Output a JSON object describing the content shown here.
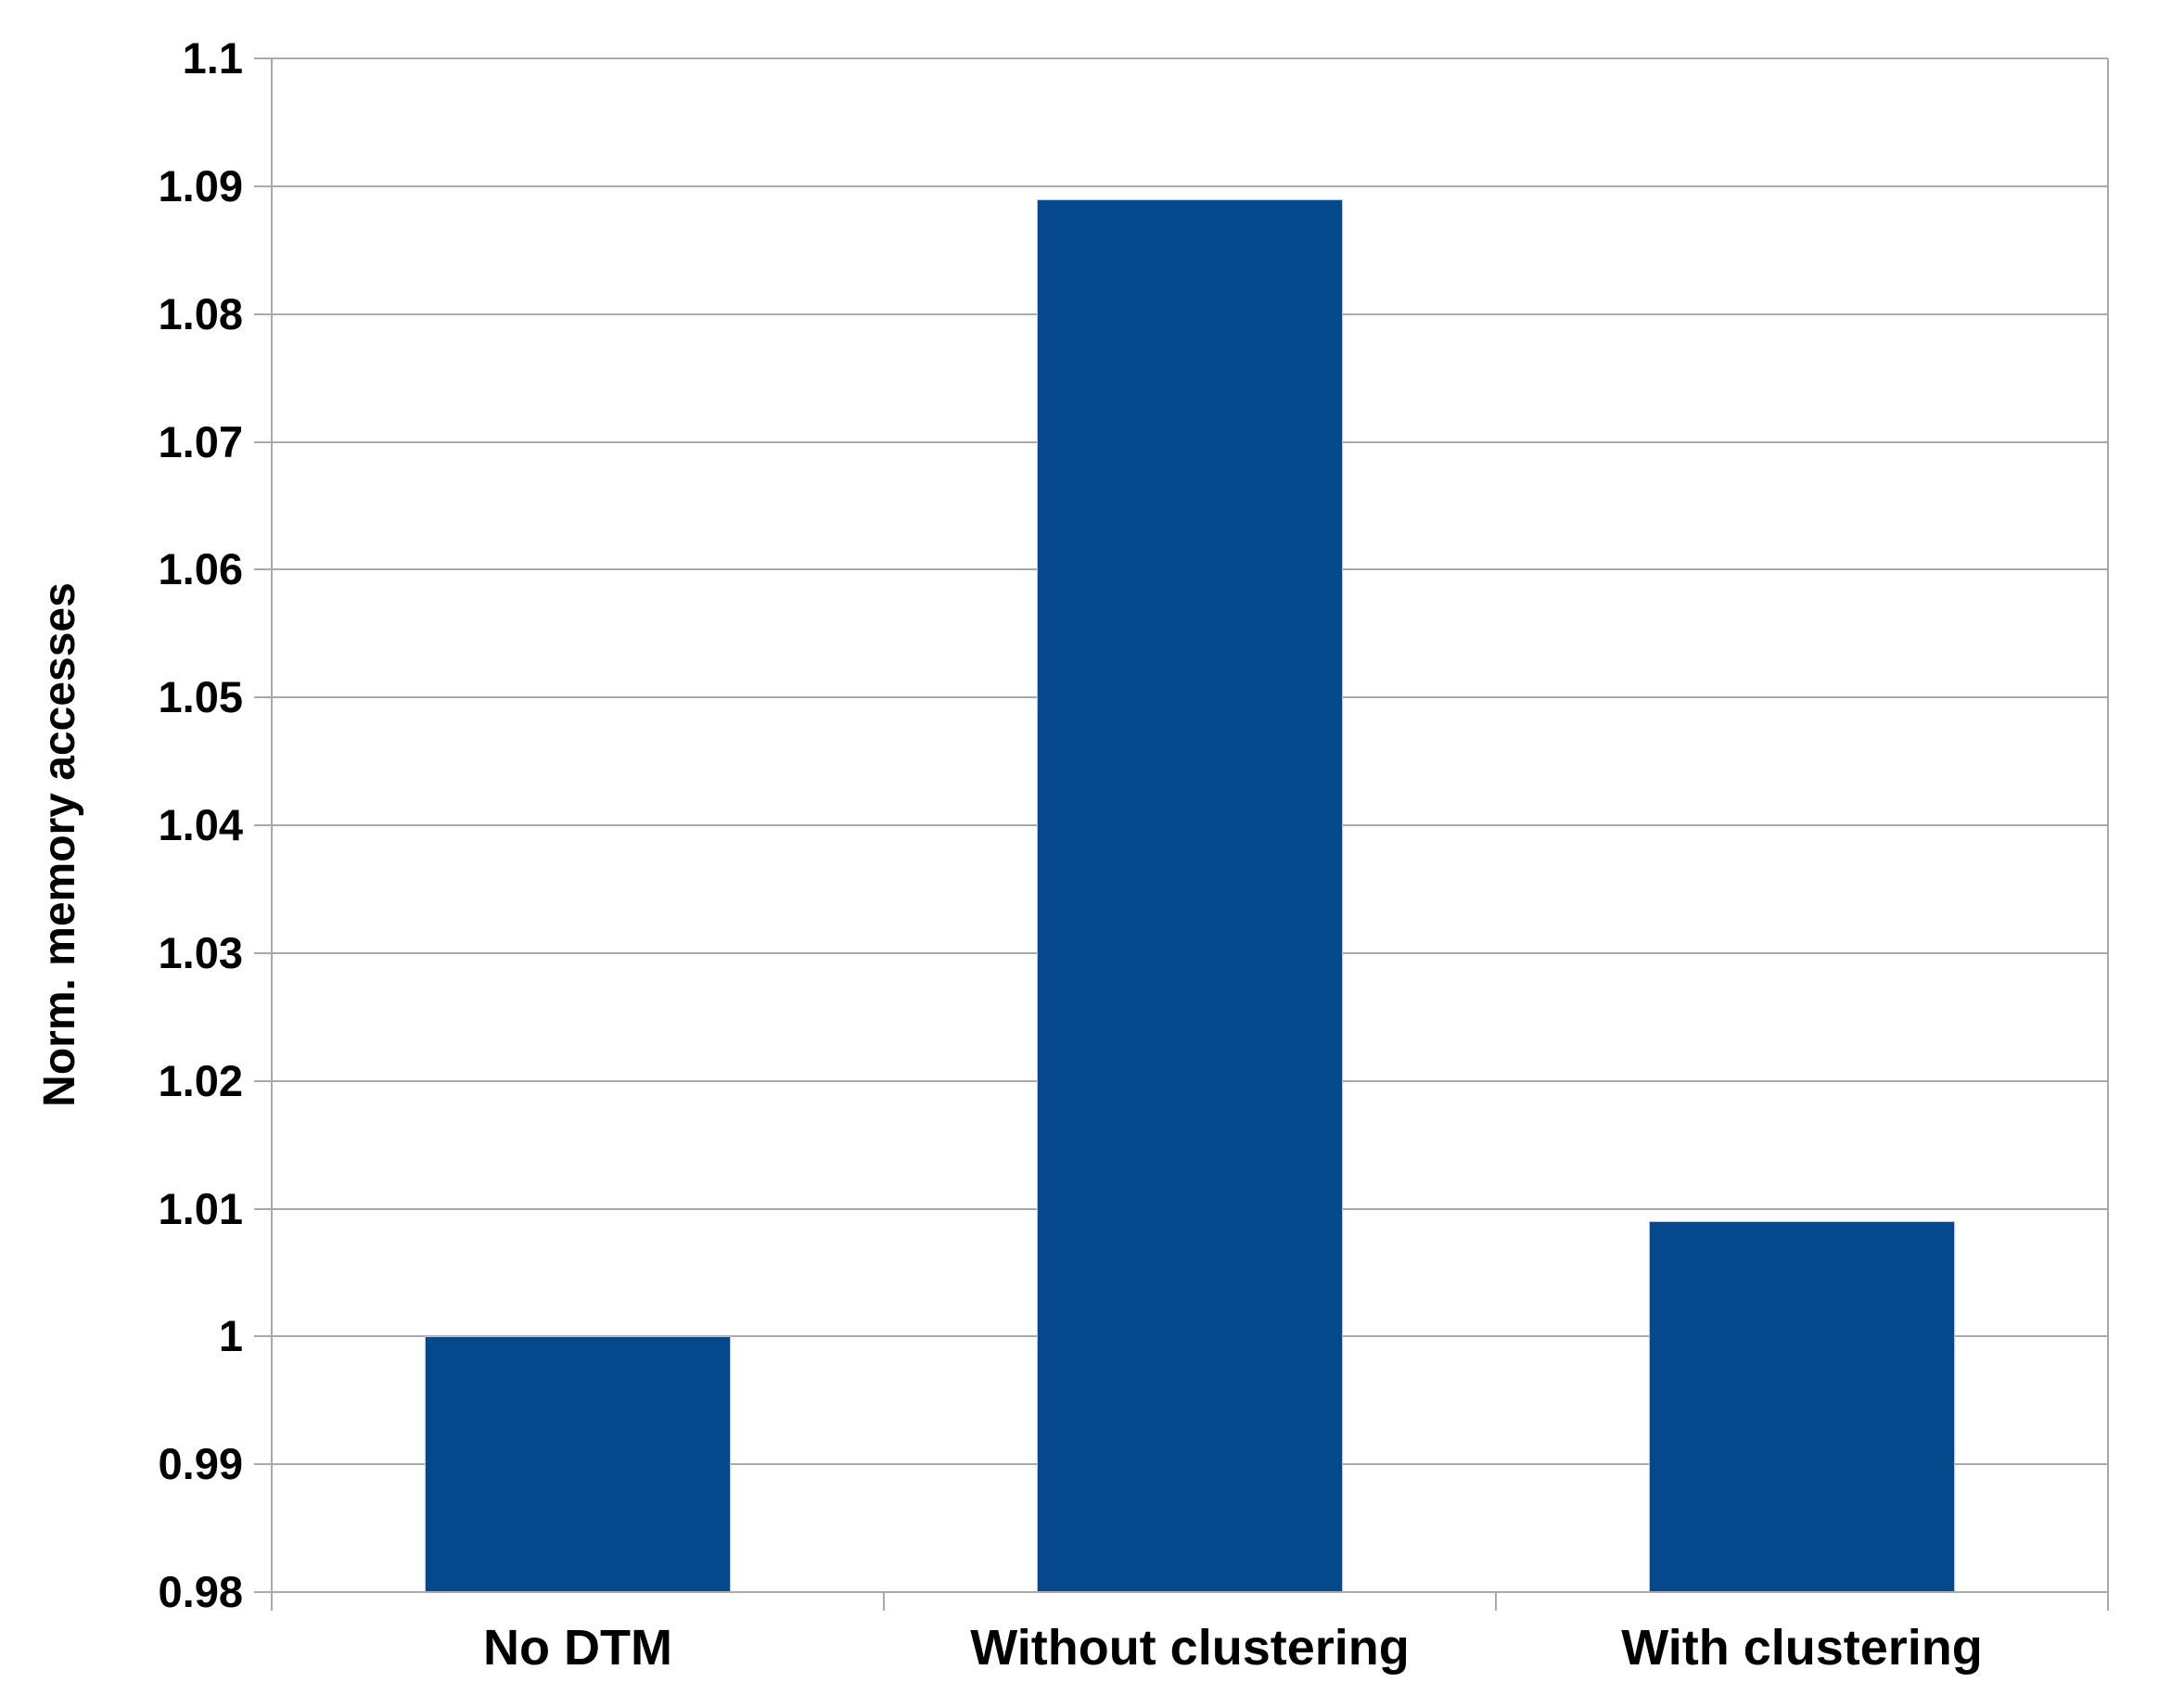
{
  "chart_data": {
    "type": "bar",
    "title": "",
    "ylabel": "Norm. memory accesses",
    "xlabel": "",
    "categories": [
      "No DTM",
      "Without clustering",
      "With clustering"
    ],
    "values": [
      1.0,
      1.089,
      1.009
    ],
    "ylim": [
      0.98,
      1.1
    ],
    "ytick_labels": [
      "0.98",
      "0.99",
      "1",
      "1.01",
      "1.02",
      "1.03",
      "1.04",
      "1.05",
      "1.06",
      "1.07",
      "1.08",
      "1.09",
      "1.1"
    ],
    "grid": "horizontal gridlines on",
    "legend_position": "none",
    "bar_color": "#05498c",
    "bar_border_color": "#b3c8dc",
    "grid_color": "#a9a9a9",
    "text_color": "#000000",
    "background_color": "#ffffff"
  }
}
